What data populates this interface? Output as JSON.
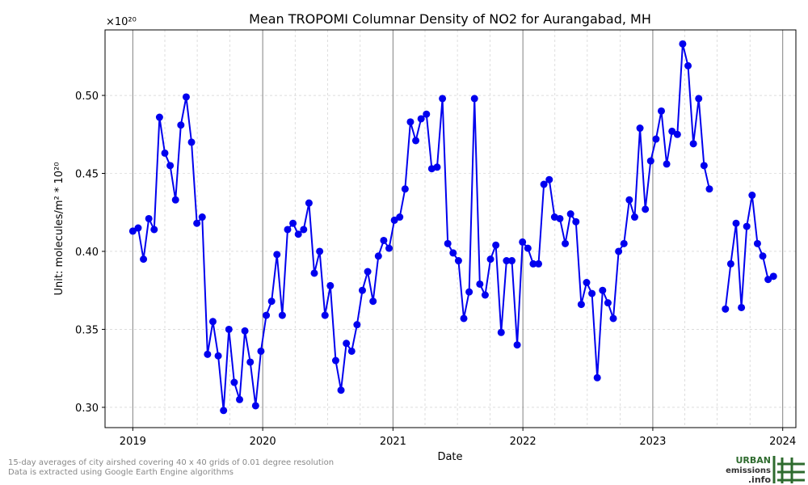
{
  "chart_data": {
    "type": "line",
    "title": "Mean TROPOMI Columnar Density of NO2 for Aurangabad, MH",
    "xlabel": "Date",
    "ylabel": "Unit: molecules/m² * 10²⁰",
    "y_multiplier_label": "×10²⁰",
    "xlim": [
      "2018-10-15",
      "2024-02-07"
    ],
    "ylim": [
      0.287,
      0.542
    ],
    "x_ticks": [
      {
        "date": "2019-01-01",
        "label": "2019"
      },
      {
        "date": "2020-01-01",
        "label": "2020"
      },
      {
        "date": "2021-01-01",
        "label": "2021"
      },
      {
        "date": "2022-01-01",
        "label": "2022"
      },
      {
        "date": "2023-01-01",
        "label": "2023"
      },
      {
        "date": "2024-01-01",
        "label": "2024"
      }
    ],
    "y_ticks": [
      {
        "value": 0.3,
        "label": "0.30"
      },
      {
        "value": 0.35,
        "label": "0.35"
      },
      {
        "value": 0.4,
        "label": "0.40"
      },
      {
        "value": 0.45,
        "label": "0.45"
      },
      {
        "value": 0.5,
        "label": "0.50"
      }
    ],
    "grid": true,
    "series_color": "#0000ee",
    "series": [
      {
        "x": [
          "2019-01-01",
          "2019-01-16",
          "2019-01-31",
          "2019-02-15",
          "2019-03-02",
          "2019-03-17",
          "2019-04-01",
          "2019-04-16",
          "2019-05-01",
          "2019-05-16",
          "2019-05-31",
          "2019-06-15",
          "2019-06-30",
          "2019-07-15",
          "2019-07-30",
          "2019-08-14",
          "2019-08-29",
          "2019-09-13",
          "2019-09-28",
          "2019-10-13",
          "2019-10-28",
          "2019-11-12",
          "2019-11-27",
          "2019-12-12",
          "2019-12-27",
          "2020-01-11",
          "2020-01-26",
          "2020-02-10",
          "2020-02-25",
          "2020-03-11",
          "2020-03-26",
          "2020-04-10",
          "2020-04-25",
          "2020-05-10",
          "2020-05-25",
          "2020-06-09",
          "2020-06-24",
          "2020-07-09",
          "2020-07-24",
          "2020-08-08",
          "2020-08-23",
          "2020-09-07",
          "2020-09-22",
          "2020-10-07",
          "2020-10-22",
          "2020-11-06",
          "2020-11-21",
          "2020-12-06",
          "2020-12-21",
          "2021-01-05",
          "2021-01-20",
          "2021-02-04",
          "2021-02-19",
          "2021-03-06",
          "2021-03-21",
          "2021-04-05",
          "2021-04-20",
          "2021-05-05",
          "2021-05-20",
          "2021-06-04",
          "2021-06-19",
          "2021-07-04",
          "2021-07-19",
          "2021-08-03",
          "2021-08-18",
          "2021-09-02",
          "2021-09-17",
          "2021-10-02",
          "2021-10-17",
          "2021-11-01",
          "2021-11-16",
          "2021-12-01",
          "2021-12-16",
          "2021-12-31",
          "2022-01-15",
          "2022-01-30",
          "2022-02-14",
          "2022-03-01",
          "2022-03-16",
          "2022-03-31",
          "2022-04-15",
          "2022-04-30",
          "2022-05-15",
          "2022-05-30",
          "2022-06-14",
          "2022-06-29",
          "2022-07-14",
          "2022-07-29",
          "2022-08-13",
          "2022-08-28",
          "2022-09-12",
          "2022-09-27",
          "2022-10-12",
          "2022-10-27",
          "2022-11-11",
          "2022-11-26",
          "2022-12-11",
          "2022-12-26",
          "2023-01-10",
          "2023-01-25",
          "2023-02-09",
          "2023-02-24",
          "2023-03-11",
          "2023-03-26",
          "2023-04-10",
          "2023-04-25",
          "2023-05-10",
          "2023-05-25",
          "2023-06-09",
          "2023-06-24",
          "2023-07-09",
          "2023-07-24",
          "2023-08-08",
          "2023-08-23",
          "2023-09-07",
          "2023-09-22",
          "2023-10-07",
          "2023-10-22",
          "2023-11-06",
          "2023-11-21",
          "2023-12-06"
        ],
        "y": [
          0.413,
          0.415,
          0.395,
          0.421,
          0.414,
          0.486,
          0.463,
          0.455,
          0.433,
          0.481,
          0.499,
          0.47,
          0.418,
          0.422,
          0.334,
          0.355,
          0.333,
          0.298,
          0.35,
          0.316,
          0.305,
          0.349,
          0.329,
          0.301,
          0.336,
          0.359,
          0.368,
          0.398,
          0.359,
          0.414,
          0.418,
          0.411,
          0.414,
          0.431,
          0.386,
          0.4,
          0.359,
          0.378,
          0.33,
          0.311,
          0.341,
          0.336,
          0.353,
          0.375,
          0.387,
          0.368,
          0.397,
          0.407,
          0.402,
          0.42,
          0.422,
          0.44,
          0.483,
          0.471,
          0.485,
          0.488,
          0.453,
          0.454,
          0.498,
          0.405,
          0.399,
          0.394,
          0.357,
          0.374,
          0.498,
          0.379,
          0.372,
          0.395,
          0.404,
          0.348,
          0.394,
          0.394,
          0.34,
          0.406,
          0.402,
          0.392,
          0.392,
          0.443,
          0.446,
          0.422,
          0.421,
          0.405,
          0.424,
          0.419,
          0.366,
          0.38,
          0.373,
          0.319,
          0.375,
          0.367,
          0.357,
          0.4,
          0.405,
          0.433,
          0.422,
          0.479,
          0.427,
          0.458,
          0.472,
          0.49,
          0.456,
          0.477,
          0.475,
          0.533,
          0.519,
          0.469,
          0.498,
          0.455,
          0.44,
          null,
          null,
          0.363,
          0.392,
          0.418,
          0.364,
          0.416,
          0.436,
          0.405,
          0.397,
          0.382,
          0.384
        ]
      }
    ]
  },
  "footnotes": [
    "15-day averages of city airshed covering 40 x 40 grids of 0.01 degree resolution",
    "Data is extracted using Google Earth Engine algorithms"
  ],
  "logo": {
    "line1": "URBAN",
    "line2": "emissions",
    "line3": ".info",
    "color": "#2e6b2e"
  }
}
